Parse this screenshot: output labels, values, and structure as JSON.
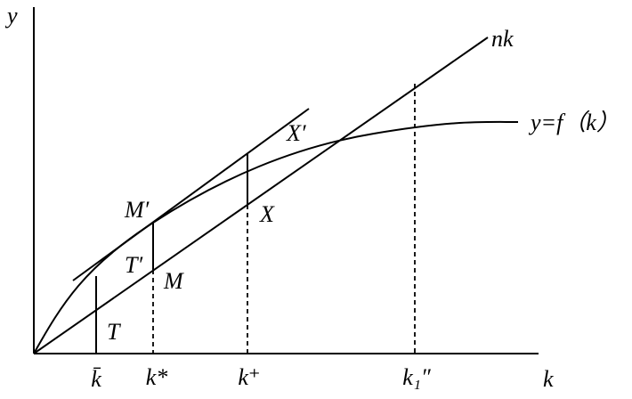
{
  "axes": {
    "y": "y",
    "x": "k"
  },
  "curves": {
    "line": "nk",
    "function": "y=f（k）"
  },
  "points": {
    "m_prime": "M′",
    "t_prime": "T′",
    "m": "M",
    "x_prime": "X′",
    "x": "X",
    "t": "T"
  },
  "ticks": {
    "k_bar": "k̄",
    "k_star": "k*",
    "k_plus": "k⁺",
    "k_one": "k₁″"
  }
}
